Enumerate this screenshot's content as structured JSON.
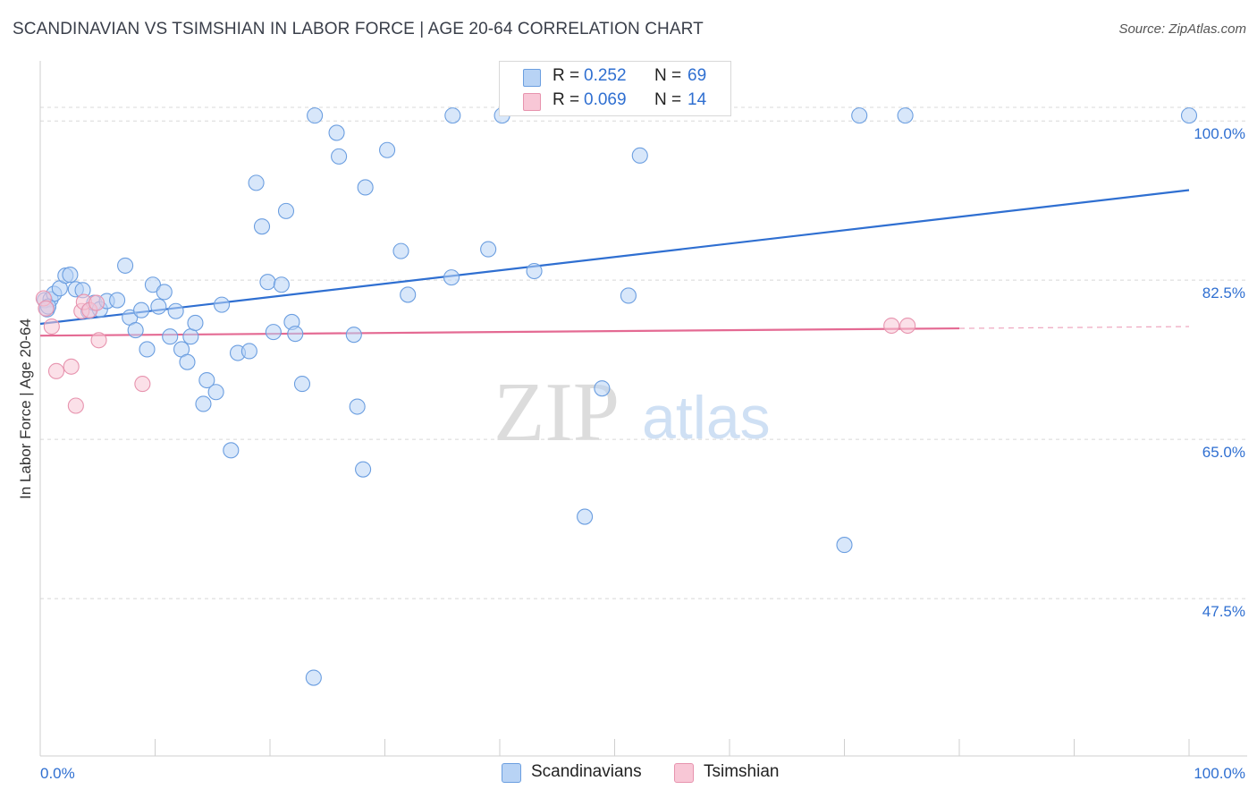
{
  "header": {
    "title": "SCANDINAVIAN VS TSIMSHIAN IN LABOR FORCE | AGE 20-64 CORRELATION CHART",
    "source": "Source: ZipAtlas.com"
  },
  "watermark": {
    "zip": "ZIP",
    "atlas": "atlas"
  },
  "legend": {
    "r_label": "R =",
    "n_label": "N =",
    "rows": [
      {
        "name": "Scandinavians",
        "r": "0.252",
        "n": "69"
      },
      {
        "name": "Tsimshian",
        "r": "0.069",
        "n": "14"
      }
    ]
  },
  "colors": {
    "blue_fill": "#b8d3f5",
    "blue_stroke": "#6b9ee0",
    "blue_line": "#2f6fd1",
    "pink_fill": "#f8c7d6",
    "pink_stroke": "#e793ae",
    "pink_line": "#e46a93",
    "axis_text": "#2f6fd1",
    "grid": "#d8d8d8"
  },
  "chart_data": {
    "type": "scatter",
    "xlabel": "",
    "ylabel": "In Labor Force | Age 20-64",
    "xlim": [
      0,
      100
    ],
    "ylim": [
      30.2,
      107.2
    ],
    "x_tick_labels": [
      "0.0%",
      "100.0%"
    ],
    "y_ticks": [
      {
        "value": 100.0,
        "label": "100.0%"
      },
      {
        "value": 82.5,
        "label": "82.5%"
      },
      {
        "value": 65.0,
        "label": "65.0%"
      },
      {
        "value": 47.5,
        "label": "47.5%"
      }
    ],
    "grid": true,
    "legend_position": "top-center",
    "series": [
      {
        "name": "Scandinavians",
        "color": "#6b9ee0",
        "points": [
          [
            0.4,
            80.3
          ],
          [
            0.9,
            80.4
          ],
          [
            1.2,
            81.0
          ],
          [
            1.7,
            81.6
          ],
          [
            2.2,
            83.0
          ],
          [
            2.6,
            83.1
          ],
          [
            3.1,
            81.5
          ],
          [
            3.7,
            81.4
          ],
          [
            4.2,
            79.1
          ],
          [
            4.7,
            80.0
          ],
          [
            5.2,
            79.3
          ],
          [
            5.8,
            80.2
          ],
          [
            6.7,
            80.3
          ],
          [
            7.4,
            84.1
          ],
          [
            7.8,
            78.4
          ],
          [
            8.3,
            77.0
          ],
          [
            8.8,
            79.2
          ],
          [
            9.3,
            74.9
          ],
          [
            9.8,
            82.0
          ],
          [
            10.3,
            79.6
          ],
          [
            10.8,
            81.2
          ],
          [
            11.3,
            76.3
          ],
          [
            11.8,
            79.1
          ],
          [
            12.3,
            74.9
          ],
          [
            12.8,
            73.5
          ],
          [
            13.1,
            76.3
          ],
          [
            13.5,
            77.8
          ],
          [
            14.2,
            68.9
          ],
          [
            14.5,
            71.5
          ],
          [
            15.3,
            70.2
          ],
          [
            15.8,
            79.8
          ],
          [
            16.6,
            63.8
          ],
          [
            17.2,
            74.5
          ],
          [
            18.2,
            74.7
          ],
          [
            18.8,
            93.2
          ],
          [
            19.3,
            88.4
          ],
          [
            19.8,
            82.3
          ],
          [
            20.3,
            76.8
          ],
          [
            21.0,
            82.0
          ],
          [
            21.4,
            90.1
          ],
          [
            21.9,
            77.9
          ],
          [
            22.2,
            76.6
          ],
          [
            22.8,
            71.1
          ],
          [
            23.8,
            38.8
          ],
          [
            23.9,
            100.6
          ],
          [
            25.8,
            98.7
          ],
          [
            26.0,
            96.1
          ],
          [
            27.3,
            76.5
          ],
          [
            27.6,
            68.6
          ],
          [
            28.1,
            61.7
          ],
          [
            28.3,
            92.7
          ],
          [
            30.2,
            96.8
          ],
          [
            31.4,
            85.7
          ],
          [
            32.0,
            80.9
          ],
          [
            35.8,
            82.8
          ],
          [
            35.9,
            100.6
          ],
          [
            39.0,
            85.9
          ],
          [
            40.2,
            100.6
          ],
          [
            43.0,
            83.5
          ],
          [
            47.4,
            56.5
          ],
          [
            48.9,
            70.6
          ],
          [
            51.2,
            80.8
          ],
          [
            52.2,
            96.2
          ],
          [
            70.0,
            53.4
          ],
          [
            71.3,
            100.6
          ],
          [
            75.3,
            100.6
          ],
          [
            100.0,
            100.6
          ],
          [
            0.6,
            79.3
          ],
          [
            0.7,
            79.6
          ]
        ],
        "trend": {
          "x": [
            0,
            100
          ],
          "y": [
            77.7,
            92.4
          ]
        }
      },
      {
        "name": "Tsimshian",
        "color": "#e793ae",
        "points": [
          [
            0.3,
            80.5
          ],
          [
            1.0,
            77.4
          ],
          [
            1.4,
            72.5
          ],
          [
            2.7,
            73.0
          ],
          [
            3.1,
            68.7
          ],
          [
            3.6,
            79.1
          ],
          [
            3.8,
            80.1
          ],
          [
            4.3,
            79.2
          ],
          [
            4.9,
            80.0
          ],
          [
            5.1,
            75.9
          ],
          [
            8.9,
            71.1
          ],
          [
            74.1,
            77.5
          ],
          [
            75.5,
            77.5
          ],
          [
            0.5,
            79.4
          ]
        ],
        "trend": {
          "x": [
            0,
            80
          ],
          "y": [
            76.4,
            77.2
          ]
        },
        "trend_extension": {
          "x": [
            80,
            100
          ],
          "y": [
            77.2,
            77.4
          ]
        }
      }
    ]
  }
}
